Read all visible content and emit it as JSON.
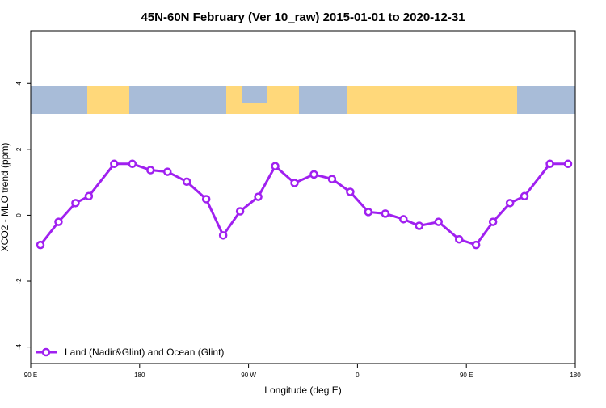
{
  "chart_data": {
    "type": "line",
    "title": "45N-60N February (Ver 10_raw)   2015-01-01 to 2020-12-31",
    "xlabel": "Longitude (deg E)",
    "ylabel": "XCO2 - MLO trend (ppm)",
    "xlim": [
      90,
      540
    ],
    "ylim": [
      -4.5,
      5.6
    ],
    "xticks": [
      {
        "value": 90,
        "label": "90 E"
      },
      180,
      {
        "value": 270,
        "label": "90 W"
      },
      {
        "value": 360,
        "label": "0"
      },
      {
        "value": 450,
        "label": "90 E"
      },
      {
        "value": 540,
        "label": "180"
      }
    ],
    "yticks": [
      -4,
      -2,
      0,
      2,
      4
    ],
    "x": [
      98,
      113,
      127,
      138,
      159,
      174,
      189,
      203,
      219,
      235,
      249,
      263,
      278,
      292,
      308,
      324,
      339,
      354,
      369,
      383,
      398,
      411,
      427,
      444,
      458,
      472,
      486,
      498,
      519,
      534
    ],
    "series": [
      {
        "name": "Land (Nadir&Glint) and Ocean (Glint)",
        "color": "#a020f0",
        "values": [
          -0.9,
          -0.2,
          0.37,
          0.58,
          1.56,
          1.56,
          1.37,
          1.32,
          1.02,
          0.49,
          -0.61,
          0.12,
          0.56,
          1.49,
          0.98,
          1.24,
          1.1,
          0.71,
          0.1,
          0.05,
          -0.12,
          -0.32,
          -0.2,
          -0.73,
          -0.9,
          -0.2,
          0.37,
          0.58,
          1.56,
          1.56
        ]
      }
    ],
    "legend": "lower left"
  }
}
